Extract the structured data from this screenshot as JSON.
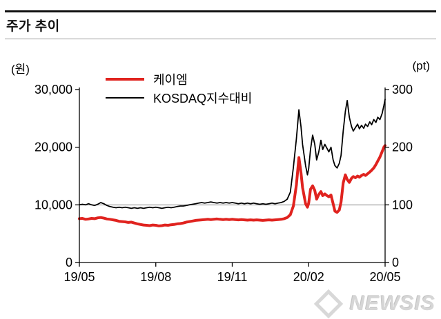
{
  "header": {
    "title": "주가 추이"
  },
  "watermark": {
    "text": "NEWSIS"
  },
  "chart_data": {
    "type": "line",
    "title": "주가 추이",
    "legend_position": "top-left-inside",
    "grid": false,
    "x_axis": {
      "range_note": "2019-05 to 2020-05",
      "ticks": [
        {
          "pct": 0,
          "label": "19/05"
        },
        {
          "pct": 25,
          "label": "19/08"
        },
        {
          "pct": 50,
          "label": "19/11"
        },
        {
          "pct": 75,
          "label": "20/02"
        },
        {
          "pct": 100,
          "label": "20/05"
        }
      ]
    },
    "left_axis": {
      "unit": "(원)",
      "min": 0,
      "max": 30000,
      "ticks": [
        {
          "value": 0,
          "label": "0"
        },
        {
          "value": 10000,
          "label": "10,000"
        },
        {
          "value": 20000,
          "label": "20,000"
        },
        {
          "value": 30000,
          "label": "30,000"
        }
      ]
    },
    "right_axis": {
      "unit": "(pt)",
      "min": 0,
      "max": 300,
      "ticks": [
        {
          "value": 0,
          "label": "0"
        },
        {
          "value": 100,
          "label": "100"
        },
        {
          "value": 200,
          "label": "200"
        },
        {
          "value": 300,
          "label": "300"
        }
      ]
    },
    "reference_line": {
      "value": 10000,
      "color": "#b3b3b3"
    },
    "series": [
      {
        "name": "케이엠",
        "axis": "left",
        "unit": "원",
        "color": "#e0231f",
        "width": 4,
        "points": [
          [
            0,
            7600
          ],
          [
            1,
            7650
          ],
          [
            2,
            7500
          ],
          [
            3,
            7550
          ],
          [
            4,
            7650
          ],
          [
            5,
            7600
          ],
          [
            6,
            7750
          ],
          [
            7,
            7800
          ],
          [
            8,
            7700
          ],
          [
            9,
            7550
          ],
          [
            10,
            7500
          ],
          [
            11,
            7400
          ],
          [
            12,
            7300
          ],
          [
            13,
            7150
          ],
          [
            14,
            7100
          ],
          [
            15,
            7050
          ],
          [
            16,
            6950
          ],
          [
            17,
            7000
          ],
          [
            18,
            6850
          ],
          [
            19,
            6700
          ],
          [
            20,
            6600
          ],
          [
            21,
            6500
          ],
          [
            22,
            6450
          ],
          [
            23,
            6400
          ],
          [
            24,
            6500
          ],
          [
            25,
            6450
          ],
          [
            26,
            6350
          ],
          [
            27,
            6400
          ],
          [
            28,
            6500
          ],
          [
            29,
            6450
          ],
          [
            30,
            6550
          ],
          [
            31,
            6600
          ],
          [
            32,
            6700
          ],
          [
            33,
            6750
          ],
          [
            34,
            6850
          ],
          [
            35,
            7000
          ],
          [
            36,
            7100
          ],
          [
            37,
            7200
          ],
          [
            38,
            7300
          ],
          [
            39,
            7350
          ],
          [
            40,
            7400
          ],
          [
            41,
            7450
          ],
          [
            42,
            7500
          ],
          [
            43,
            7450
          ],
          [
            44,
            7500
          ],
          [
            45,
            7550
          ],
          [
            46,
            7500
          ],
          [
            47,
            7450
          ],
          [
            48,
            7500
          ],
          [
            49,
            7450
          ],
          [
            50,
            7500
          ],
          [
            51,
            7450
          ],
          [
            52,
            7400
          ],
          [
            53,
            7450
          ],
          [
            54,
            7400
          ],
          [
            55,
            7350
          ],
          [
            56,
            7400
          ],
          [
            57,
            7350
          ],
          [
            58,
            7400
          ],
          [
            59,
            7350
          ],
          [
            60,
            7300
          ],
          [
            61,
            7350
          ],
          [
            62,
            7400
          ],
          [
            63,
            7350
          ],
          [
            64,
            7400
          ],
          [
            65,
            7450
          ],
          [
            66,
            7500
          ],
          [
            67,
            7600
          ],
          [
            68,
            7800
          ],
          [
            69,
            8300
          ],
          [
            70,
            9800
          ],
          [
            71,
            13500
          ],
          [
            71.8,
            18200
          ],
          [
            72.5,
            15500
          ],
          [
            73,
            13000
          ],
          [
            74,
            10200
          ],
          [
            74.6,
            9600
          ],
          [
            75,
            10300
          ],
          [
            75.6,
            12700
          ],
          [
            76.3,
            13300
          ],
          [
            77,
            12500
          ],
          [
            77.6,
            11000
          ],
          [
            78.3,
            11800
          ],
          [
            79,
            12300
          ],
          [
            79.6,
            11600
          ],
          [
            80.3,
            11900
          ],
          [
            81,
            11600
          ],
          [
            81.6,
            11400
          ],
          [
            82.3,
            11700
          ],
          [
            83,
            10200
          ],
          [
            83.6,
            8900
          ],
          [
            84.3,
            8700
          ],
          [
            85,
            9100
          ],
          [
            85.6,
            10500
          ],
          [
            86.3,
            13800
          ],
          [
            87,
            15200
          ],
          [
            87.6,
            14400
          ],
          [
            88.3,
            13900
          ],
          [
            89,
            14600
          ],
          [
            89.6,
            14900
          ],
          [
            90.3,
            14700
          ],
          [
            91,
            15000
          ],
          [
            91.6,
            14800
          ],
          [
            92.3,
            15100
          ],
          [
            93,
            15300
          ],
          [
            93.6,
            15100
          ],
          [
            94.3,
            15400
          ],
          [
            95,
            15700
          ],
          [
            95.6,
            16000
          ],
          [
            96.3,
            16400
          ],
          [
            97,
            17000
          ],
          [
            97.6,
            17600
          ],
          [
            98.3,
            18300
          ],
          [
            99,
            19200
          ],
          [
            99.6,
            20000
          ],
          [
            100,
            20300
          ]
        ]
      },
      {
        "name": "KOSDAQ지수대비",
        "axis": "right",
        "unit": "pt",
        "color": "#000000",
        "width": 1.8,
        "points": [
          [
            0,
            100
          ],
          [
            1,
            101
          ],
          [
            2,
            100
          ],
          [
            3,
            102
          ],
          [
            4,
            100
          ],
          [
            5,
            99
          ],
          [
            6,
            101
          ],
          [
            7,
            104
          ],
          [
            8,
            102
          ],
          [
            9,
            99
          ],
          [
            10,
            97
          ],
          [
            11,
            96
          ],
          [
            12,
            95
          ],
          [
            13,
            96
          ],
          [
            14,
            95
          ],
          [
            15,
            96
          ],
          [
            16,
            95
          ],
          [
            17,
            94
          ],
          [
            18,
            95
          ],
          [
            19,
            94
          ],
          [
            20,
            95
          ],
          [
            21,
            94
          ],
          [
            22,
            95
          ],
          [
            23,
            96
          ],
          [
            24,
            95
          ],
          [
            25,
            96
          ],
          [
            26,
            95
          ],
          [
            27,
            94
          ],
          [
            28,
            95
          ],
          [
            29,
            96
          ],
          [
            30,
            95
          ],
          [
            31,
            96
          ],
          [
            32,
            97
          ],
          [
            33,
            98
          ],
          [
            34,
            98
          ],
          [
            35,
            99
          ],
          [
            36,
            100
          ],
          [
            37,
            101
          ],
          [
            38,
            102
          ],
          [
            39,
            103
          ],
          [
            40,
            104
          ],
          [
            41,
            103
          ],
          [
            42,
            104
          ],
          [
            43,
            105
          ],
          [
            44,
            104
          ],
          [
            45,
            103
          ],
          [
            46,
            104
          ],
          [
            47,
            103
          ],
          [
            48,
            104
          ],
          [
            49,
            103
          ],
          [
            50,
            104
          ],
          [
            51,
            103
          ],
          [
            52,
            102
          ],
          [
            53,
            103
          ],
          [
            54,
            102
          ],
          [
            55,
            103
          ],
          [
            56,
            102
          ],
          [
            57,
            103
          ],
          [
            58,
            102
          ],
          [
            59,
            101
          ],
          [
            60,
            102
          ],
          [
            61,
            101
          ],
          [
            62,
            102
          ],
          [
            63,
            103
          ],
          [
            64,
            102
          ],
          [
            65,
            103
          ],
          [
            66,
            104
          ],
          [
            67,
            106
          ],
          [
            68,
            110
          ],
          [
            69,
            122
          ],
          [
            70,
            165
          ],
          [
            71,
            215
          ],
          [
            71.8,
            265
          ],
          [
            72.5,
            235
          ],
          [
            73,
            205
          ],
          [
            74,
            168
          ],
          [
            74.6,
            152
          ],
          [
            75,
            163
          ],
          [
            75.6,
            196
          ],
          [
            76.3,
            221
          ],
          [
            77,
            205
          ],
          [
            77.6,
            178
          ],
          [
            78.3,
            192
          ],
          [
            79,
            212
          ],
          [
            79.6,
            196
          ],
          [
            80.3,
            205
          ],
          [
            81,
            198
          ],
          [
            81.6,
            192
          ],
          [
            82.3,
            200
          ],
          [
            83,
            178
          ],
          [
            83.6,
            168
          ],
          [
            84.3,
            164
          ],
          [
            85,
            172
          ],
          [
            85.6,
            186
          ],
          [
            86.3,
            228
          ],
          [
            87,
            262
          ],
          [
            87.6,
            281
          ],
          [
            88.3,
            252
          ],
          [
            89,
            236
          ],
          [
            89.6,
            228
          ],
          [
            90.3,
            234
          ],
          [
            91,
            240
          ],
          [
            91.6,
            232
          ],
          [
            92.3,
            238
          ],
          [
            93,
            233
          ],
          [
            93.6,
            240
          ],
          [
            94.3,
            236
          ],
          [
            95,
            244
          ],
          [
            95.6,
            239
          ],
          [
            96.3,
            248
          ],
          [
            97,
            243
          ],
          [
            97.6,
            252
          ],
          [
            98.3,
            248
          ],
          [
            99,
            258
          ],
          [
            99.6,
            272
          ],
          [
            100,
            283
          ]
        ]
      }
    ]
  }
}
